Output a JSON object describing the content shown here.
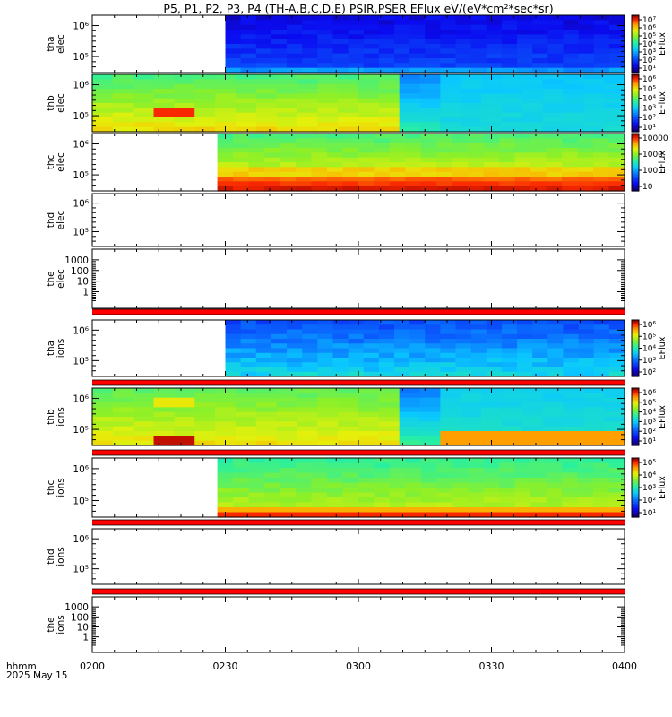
{
  "chart_data": {
    "type": "heatmap",
    "title": "P5, P1, P2, P3, P4 (TH-A,B,C,D,E) PSIR,PSER EFlux eV/(eV*cm²*sec*sr)",
    "x_axis": {
      "range": [
        "0200",
        "0400"
      ],
      "tick_labels": [
        "0200",
        "0230",
        "0300",
        "0330",
        "0400"
      ],
      "label_lines": [
        "hhmm",
        "2025 May 15"
      ]
    },
    "panels": [
      {
        "label_lines": [
          "tha",
          "elec"
        ],
        "yscale": "log",
        "y_ticks": [
          "10⁶",
          "10⁵"
        ],
        "colorbar": "elec_a",
        "data_start": 0.25,
        "data_end": 1.0,
        "intensity_profile": "tha"
      },
      {
        "label_lines": [
          "thb",
          "elec"
        ],
        "yscale": "log",
        "y_ticks": [
          "10⁶",
          "10⁵"
        ],
        "colorbar": "elec_b",
        "data_start": 0.0,
        "data_end": 1.0,
        "intensity_profile": "thb"
      },
      {
        "label_lines": [
          "thc",
          "elec"
        ],
        "yscale": "log",
        "y_ticks": [
          "10⁶",
          "10⁵"
        ],
        "colorbar": "elec_c",
        "data_start": 0.235,
        "data_end": 1.0,
        "intensity_profile": "thc"
      },
      {
        "label_lines": [
          "thd",
          "elec"
        ],
        "yscale": "log",
        "y_ticks": [
          "10⁶",
          "10⁵"
        ],
        "colorbar": null,
        "data_start": null,
        "data_end": null,
        "intensity_profile": null
      },
      {
        "label_lines": [
          "the",
          "elec"
        ],
        "yscale": "log",
        "y_ticks": [
          "1000",
          "100",
          "10",
          "1"
        ],
        "colorbar": null,
        "data_start": null,
        "data_end": null,
        "intensity_profile": null
      },
      {
        "label_lines": [
          "tha",
          "ions"
        ],
        "yscale": "log",
        "y_ticks": [
          "10⁶",
          "10⁵"
        ],
        "colorbar": "ions_a",
        "data_start": 0.25,
        "data_end": 1.0,
        "intensity_profile": "tha_i"
      },
      {
        "label_lines": [
          "thb",
          "ions"
        ],
        "yscale": "log",
        "y_ticks": [
          "10⁶",
          "10⁵"
        ],
        "colorbar": "ions_b",
        "data_start": 0.0,
        "data_end": 1.0,
        "intensity_profile": "thb_i"
      },
      {
        "label_lines": [
          "thc",
          "ions"
        ],
        "yscale": "log",
        "y_ticks": [
          "10⁶",
          "10⁵"
        ],
        "colorbar": "ions_c",
        "data_start": 0.235,
        "data_end": 1.0,
        "intensity_profile": "thc_i"
      },
      {
        "label_lines": [
          "thd",
          "ions"
        ],
        "yscale": "log",
        "y_ticks": [
          "10⁶",
          "10⁵"
        ],
        "colorbar": null,
        "data_start": null,
        "data_end": null,
        "intensity_profile": null
      },
      {
        "label_lines": [
          "the",
          "ions"
        ],
        "yscale": "log",
        "y_ticks": [
          "1000",
          "100",
          "10",
          "1"
        ],
        "colorbar": null,
        "data_start": null,
        "data_end": null,
        "intensity_profile": null
      }
    ],
    "colorbars": {
      "elec_a": {
        "label": "EFlux",
        "ticks": [
          "10⁷",
          "10⁶",
          "10⁵",
          "10⁴",
          "10³",
          "10²",
          "10¹"
        ]
      },
      "elec_b": {
        "label": "EFlux",
        "ticks": [
          "10⁶",
          "10⁵",
          "10⁴",
          "10³",
          "10²",
          "10¹"
        ]
      },
      "elec_c": {
        "label": "EFlux",
        "ticks": [
          "10000",
          "1000",
          "100",
          "10"
        ]
      },
      "ions_a": {
        "label": "EFlux",
        "ticks": [
          "10⁶",
          "10⁵",
          "10⁴",
          "10³",
          "10²"
        ]
      },
      "ions_b": {
        "label": "EFlux",
        "ticks": [
          "10⁶",
          "10⁵",
          "10⁴",
          "10³",
          "10²",
          "10¹"
        ]
      },
      "ions_c": {
        "label": "EFlux",
        "ticks": [
          "10⁵",
          "10⁴",
          "10³",
          "10²",
          "10¹"
        ]
      }
    },
    "colors": {
      "line_red": "#ff0000",
      "axis": "#000000",
      "background": "#ffffff"
    }
  }
}
